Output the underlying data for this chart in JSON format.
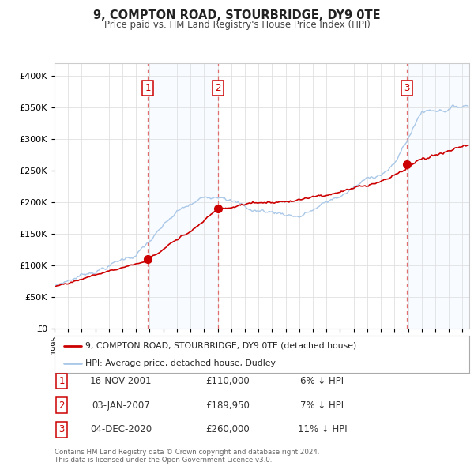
{
  "title": "9, COMPTON ROAD, STOURBRIDGE, DY9 0TE",
  "subtitle": "Price paid vs. HM Land Registry's House Price Index (HPI)",
  "legend_line1": "9, COMPTON ROAD, STOURBRIDGE, DY9 0TE (detached house)",
  "legend_line2": "HPI: Average price, detached house, Dudley",
  "footer1": "Contains HM Land Registry data © Crown copyright and database right 2024.",
  "footer2": "This data is licensed under the Open Government Licence v3.0.",
  "transactions": [
    {
      "num": 1,
      "date": "16-NOV-2001",
      "price": "£110,000",
      "hpi_pct": "6% ↓ HPI",
      "year": 2001.88
    },
    {
      "num": 2,
      "date": "03-JAN-2007",
      "price": "£189,950",
      "hpi_pct": "7% ↓ HPI",
      "year": 2007.01
    },
    {
      "num": 3,
      "date": "04-DEC-2020",
      "price": "£260,000",
      "hpi_pct": "11% ↓ HPI",
      "year": 2020.92
    }
  ],
  "vline_years": [
    2001.88,
    2007.01,
    2020.92
  ],
  "sale_points_x": [
    2001.88,
    2007.01,
    2020.92
  ],
  "sale_points_y": [
    110000,
    189950,
    260000
  ],
  "hpi_color": "#aac8e8",
  "price_color": "#cc0000",
  "vline_color": "#e06060",
  "shade_color": "#ddeeff",
  "plot_bg_color": "#ffffff",
  "xlim": [
    1995,
    2025.5
  ],
  "ylim": [
    0,
    420000
  ],
  "yticks": [
    0,
    50000,
    100000,
    150000,
    200000,
    250000,
    300000,
    350000,
    400000
  ]
}
